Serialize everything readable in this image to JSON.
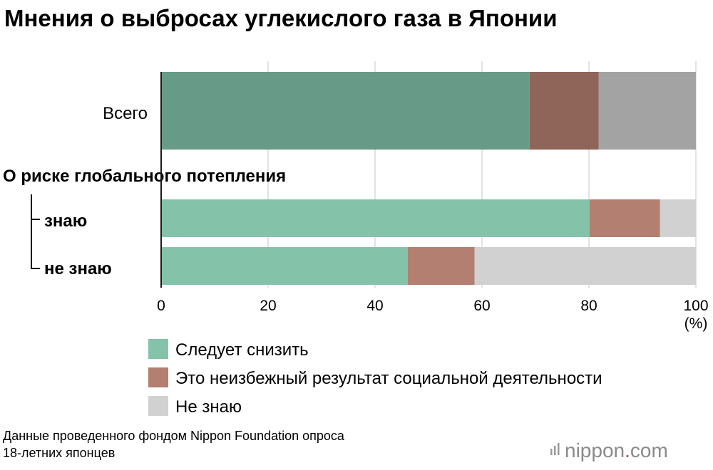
{
  "chart_data": {
    "type": "bar",
    "orientation": "horizontal",
    "stacked": true,
    "title": "Мнения о выбросах углекислого газа в Японии",
    "group_label": "О риске глобального потепления",
    "categories": [
      "Всего",
      "знаю",
      "не знаю"
    ],
    "series": [
      {
        "name": "Следует снизить",
        "values": [
          68.9,
          80.1,
          46.1
        ]
      },
      {
        "name": "Это неизбежный результат социальной деятельности",
        "values": [
          12.9,
          13.2,
          12.5
        ]
      },
      {
        "name": "Не знаю",
        "values": [
          18.2,
          6.7,
          41.4
        ]
      }
    ],
    "xlim": [
      0,
      100
    ],
    "xticks": [
      "0",
      "20",
      "40",
      "60",
      "80",
      "100"
    ],
    "xunit": "(%)",
    "grid": true,
    "legend_position": "bottom",
    "colors": {
      "total": [
        "#689b87",
        "#8e6558",
        "#a3a3a3"
      ],
      "sub": [
        "#84c2aa",
        "#b37f70",
        "#d1d1d1"
      ],
      "legend": [
        "#84c2aa",
        "#b37f70",
        "#d1d1d1"
      ]
    }
  },
  "source": {
    "line1": "Данные проведенного фондом Nippon Foundation опроса",
    "line2": "18-летних японцев"
  },
  "logo": {
    "pre": "nippon",
    "dot": ".",
    "post": "com",
    "dot_color": "#e23a3a"
  }
}
